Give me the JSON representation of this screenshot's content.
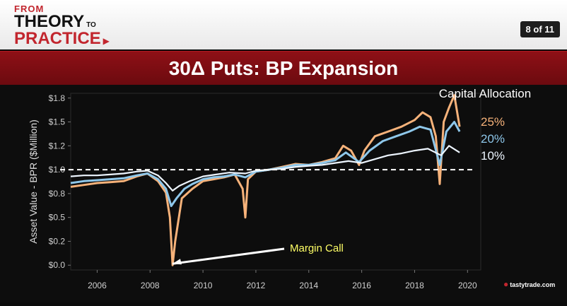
{
  "header": {
    "logo_from": "FROM",
    "logo_theory": "THEORY",
    "logo_to": "TO",
    "logo_practice": "PRACTICE",
    "slide_counter": "8 of 11"
  },
  "title": "30Δ Puts: BP Expansion",
  "footer": {
    "brand": "tastytrade.com"
  },
  "chart_data": {
    "type": "line",
    "title": "30Δ Puts: BP Expansion",
    "xlabel": "",
    "ylabel": "Asset Value - BPR ($Million)",
    "x_ticks": [
      "2006",
      "2008",
      "2010",
      "2012",
      "2014",
      "2016",
      "2018",
      "2020"
    ],
    "y_ticks": [
      "$0.0",
      "$0.2",
      "$0.5",
      "$0.8",
      "$1.0",
      "$1.2",
      "$1.5",
      "$1.8"
    ],
    "xlim": [
      2005.0,
      2020.5
    ],
    "ylim": [
      -0.05,
      1.8
    ],
    "legend_title": "Capital Allocation",
    "reference_line": {
      "y": 1.0,
      "style": "dashed",
      "color": "#ffffff"
    },
    "annotation": {
      "text": "Margin Call",
      "x": 2008.9,
      "y": 0.0,
      "color": "#ffff66"
    },
    "series": [
      {
        "name": "25%",
        "color": "#f6b27a",
        "x": [
          2005.0,
          2005.5,
          2006.0,
          2006.5,
          2007.0,
          2007.5,
          2007.9,
          2008.3,
          2008.6,
          2008.75,
          2008.85,
          2008.95,
          2009.2,
          2009.6,
          2010.0,
          2010.4,
          2010.8,
          2011.2,
          2011.5,
          2011.6,
          2011.7,
          2012.0,
          2012.5,
          2013.0,
          2013.5,
          2014.0,
          2014.5,
          2015.0,
          2015.3,
          2015.6,
          2015.9,
          2016.1,
          2016.5,
          2017.0,
          2017.5,
          2018.0,
          2018.3,
          2018.6,
          2018.8,
          2018.95,
          2019.1,
          2019.3,
          2019.5,
          2019.7
        ],
        "values": [
          0.82,
          0.84,
          0.86,
          0.87,
          0.88,
          0.93,
          0.96,
          0.88,
          0.76,
          0.5,
          0.0,
          0.25,
          0.7,
          0.8,
          0.88,
          0.9,
          0.92,
          0.95,
          0.8,
          0.5,
          0.9,
          0.98,
          1.0,
          1.03,
          1.06,
          1.05,
          1.08,
          1.12,
          1.25,
          1.2,
          1.05,
          1.2,
          1.35,
          1.4,
          1.45,
          1.52,
          1.6,
          1.55,
          1.35,
          0.85,
          1.5,
          1.65,
          1.78,
          1.45
        ]
      },
      {
        "name": "20%",
        "color": "#8ec7ea",
        "x": [
          2005.0,
          2005.5,
          2006.0,
          2006.5,
          2007.0,
          2007.5,
          2007.9,
          2008.3,
          2008.6,
          2008.8,
          2009.0,
          2009.3,
          2009.6,
          2010.0,
          2010.4,
          2010.8,
          2011.2,
          2011.6,
          2012.0,
          2012.5,
          2013.0,
          2013.5,
          2014.0,
          2014.5,
          2015.0,
          2015.4,
          2015.9,
          2016.3,
          2016.8,
          2017.3,
          2017.8,
          2018.2,
          2018.6,
          2018.95,
          2019.2,
          2019.5,
          2019.7
        ],
        "values": [
          0.86,
          0.88,
          0.89,
          0.9,
          0.91,
          0.94,
          0.96,
          0.9,
          0.8,
          0.62,
          0.7,
          0.8,
          0.85,
          0.9,
          0.92,
          0.93,
          0.95,
          0.92,
          0.98,
          1.0,
          1.02,
          1.05,
          1.05,
          1.07,
          1.1,
          1.18,
          1.08,
          1.2,
          1.3,
          1.35,
          1.4,
          1.45,
          1.42,
          1.05,
          1.4,
          1.5,
          1.4
        ]
      },
      {
        "name": "10%",
        "color": "#eef6ff",
        "x": [
          2005.0,
          2005.5,
          2006.0,
          2006.5,
          2007.0,
          2007.5,
          2007.9,
          2008.3,
          2008.6,
          2008.85,
          2009.1,
          2009.5,
          2010.0,
          2010.5,
          2011.0,
          2011.6,
          2012.0,
          2012.5,
          2013.0,
          2013.5,
          2014.0,
          2014.5,
          2015.0,
          2015.5,
          2016.0,
          2016.5,
          2017.0,
          2017.5,
          2018.0,
          2018.5,
          2019.0,
          2019.3,
          2019.7
        ],
        "values": [
          0.93,
          0.94,
          0.94,
          0.95,
          0.96,
          0.98,
          0.99,
          0.94,
          0.86,
          0.78,
          0.83,
          0.88,
          0.93,
          0.95,
          0.97,
          0.96,
          0.99,
          1.0,
          1.01,
          1.03,
          1.04,
          1.05,
          1.07,
          1.09,
          1.07,
          1.11,
          1.15,
          1.17,
          1.2,
          1.22,
          1.15,
          1.25,
          1.18
        ]
      }
    ]
  }
}
